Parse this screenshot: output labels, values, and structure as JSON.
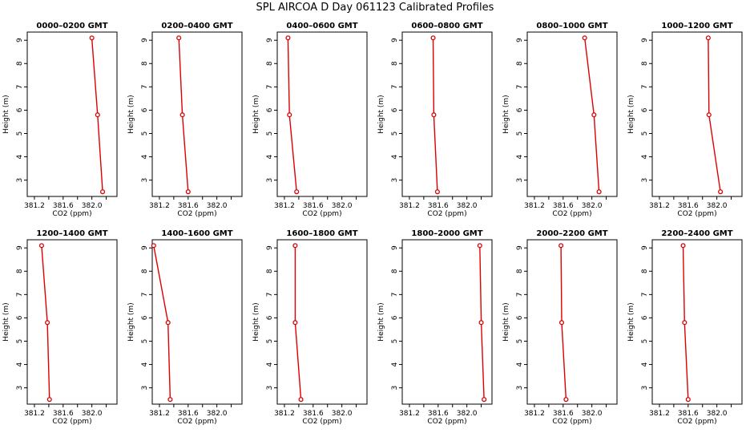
{
  "figure_title": "SPL AIRCOA D  Day 061123  Calibrated Profiles",
  "colors": {
    "series": "#dd0000",
    "axes": "#000000",
    "background": "#ffffff"
  },
  "chart_data": [
    {
      "type": "line",
      "title": "0000–0200 GMT",
      "xlabel": "CO2 (ppm)",
      "ylabel": "Height (m)",
      "xlim": [
        381.1,
        382.35
      ],
      "ylim": [
        2.3,
        9.35
      ],
      "x_ticks": [
        "381.2",
        "381.6",
        "382.0"
      ],
      "y_ticks": [
        "3",
        "4",
        "5",
        "6",
        "7",
        "8",
        "9"
      ],
      "x": [
        382.0,
        382.08,
        382.15
      ],
      "y": [
        9.1,
        5.8,
        2.5
      ]
    },
    {
      "type": "line",
      "title": "0200–0400 GMT",
      "xlabel": "CO2 (ppm)",
      "ylabel": "Height (m)",
      "xlim": [
        381.1,
        382.35
      ],
      "ylim": [
        2.3,
        9.35
      ],
      "x_ticks": [
        "381.2",
        "381.6",
        "382.0"
      ],
      "y_ticks": [
        "3",
        "4",
        "5",
        "6",
        "7",
        "8",
        "9"
      ],
      "x": [
        381.47,
        381.52,
        381.6
      ],
      "y": [
        9.1,
        5.8,
        2.5
      ]
    },
    {
      "type": "line",
      "title": "0400–0600 GMT",
      "xlabel": "CO2 (ppm)",
      "ylabel": "Height (m)",
      "xlim": [
        381.1,
        382.35
      ],
      "ylim": [
        2.3,
        9.35
      ],
      "x_ticks": [
        "381.2",
        "381.6",
        "382.0"
      ],
      "y_ticks": [
        "3",
        "4",
        "5",
        "6",
        "7",
        "8",
        "9"
      ],
      "x": [
        381.25,
        381.27,
        381.37
      ],
      "y": [
        9.1,
        5.8,
        2.5
      ]
    },
    {
      "type": "line",
      "title": "0600–0800 GMT",
      "xlabel": "CO2 (ppm)",
      "ylabel": "Height (m)",
      "xlim": [
        381.1,
        382.35
      ],
      "ylim": [
        2.3,
        9.35
      ],
      "x_ticks": [
        "381.2",
        "381.6",
        "382.0"
      ],
      "y_ticks": [
        "3",
        "4",
        "5",
        "6",
        "7",
        "8",
        "9"
      ],
      "x": [
        381.53,
        381.54,
        381.59
      ],
      "y": [
        9.1,
        5.8,
        2.5
      ]
    },
    {
      "type": "line",
      "title": "0800–1000 GMT",
      "xlabel": "CO2 (ppm)",
      "ylabel": "Height (m)",
      "xlim": [
        381.1,
        382.35
      ],
      "ylim": [
        2.3,
        9.35
      ],
      "x_ticks": [
        "381.2",
        "381.6",
        "382.0"
      ],
      "y_ticks": [
        "3",
        "4",
        "5",
        "6",
        "7",
        "8",
        "9"
      ],
      "x": [
        381.9,
        382.03,
        382.1
      ],
      "y": [
        9.1,
        5.8,
        2.5
      ]
    },
    {
      "type": "line",
      "title": "1000–1200 GMT",
      "xlabel": "CO2 (ppm)",
      "ylabel": "Height (m)",
      "xlim": [
        381.1,
        382.35
      ],
      "ylim": [
        2.3,
        9.35
      ],
      "x_ticks": [
        "381.2",
        "381.6",
        "382.0"
      ],
      "y_ticks": [
        "3",
        "4",
        "5",
        "6",
        "7",
        "8",
        "9"
      ],
      "x": [
        381.88,
        381.89,
        382.05
      ],
      "y": [
        9.1,
        5.8,
        2.5
      ]
    },
    {
      "type": "line",
      "title": "1200–1400 GMT",
      "xlabel": "CO2 (ppm)",
      "ylabel": "Height (m)",
      "xlim": [
        381.1,
        382.35
      ],
      "ylim": [
        2.3,
        9.35
      ],
      "x_ticks": [
        "381.2",
        "381.6",
        "382.0"
      ],
      "y_ticks": [
        "3",
        "4",
        "5",
        "6",
        "7",
        "8",
        "9"
      ],
      "x": [
        381.3,
        381.38,
        381.41
      ],
      "y": [
        9.1,
        5.8,
        2.5
      ]
    },
    {
      "type": "line",
      "title": "1400–1600 GMT",
      "xlabel": "CO2 (ppm)",
      "ylabel": "Height (m)",
      "xlim": [
        381.1,
        382.35
      ],
      "ylim": [
        2.3,
        9.35
      ],
      "x_ticks": [
        "381.2",
        "381.6",
        "382.0"
      ],
      "y_ticks": [
        "3",
        "4",
        "5",
        "6",
        "7",
        "8",
        "9"
      ],
      "x": [
        381.12,
        381.32,
        381.35
      ],
      "y": [
        9.1,
        5.8,
        2.5
      ]
    },
    {
      "type": "line",
      "title": "1600–1800 GMT",
      "xlabel": "CO2 (ppm)",
      "ylabel": "Height (m)",
      "xlim": [
        381.1,
        382.35
      ],
      "ylim": [
        2.3,
        9.35
      ],
      "x_ticks": [
        "381.2",
        "381.6",
        "382.0"
      ],
      "y_ticks": [
        "3",
        "4",
        "5",
        "6",
        "7",
        "8",
        "9"
      ],
      "x": [
        381.35,
        381.35,
        381.43
      ],
      "y": [
        9.1,
        5.8,
        2.5
      ]
    },
    {
      "type": "line",
      "title": "1800–2000 GMT",
      "xlabel": "CO2 (ppm)",
      "ylabel": "Height (m)",
      "xlim": [
        381.1,
        382.35
      ],
      "ylim": [
        2.3,
        9.35
      ],
      "x_ticks": [
        "381.2",
        "381.6",
        "382.0"
      ],
      "y_ticks": [
        "3",
        "4",
        "5",
        "6",
        "7",
        "8",
        "9"
      ],
      "x": [
        382.18,
        382.2,
        382.24
      ],
      "y": [
        9.1,
        5.8,
        2.5
      ]
    },
    {
      "type": "line",
      "title": "2000–2200 GMT",
      "xlabel": "CO2 (ppm)",
      "ylabel": "Height (m)",
      "xlim": [
        381.1,
        382.35
      ],
      "ylim": [
        2.3,
        9.35
      ],
      "x_ticks": [
        "381.2",
        "381.6",
        "382.0"
      ],
      "y_ticks": [
        "3",
        "4",
        "5",
        "6",
        "7",
        "8",
        "9"
      ],
      "x": [
        381.57,
        381.58,
        381.64
      ],
      "y": [
        9.1,
        5.8,
        2.5
      ]
    },
    {
      "type": "line",
      "title": "2200–2400 GMT",
      "xlabel": "CO2 (ppm)",
      "ylabel": "Height (m)",
      "xlim": [
        381.1,
        382.35
      ],
      "ylim": [
        2.3,
        9.35
      ],
      "x_ticks": [
        "381.2",
        "381.6",
        "382.0"
      ],
      "y_ticks": [
        "3",
        "4",
        "5",
        "6",
        "7",
        "8",
        "9"
      ],
      "x": [
        381.53,
        381.55,
        381.6
      ],
      "y": [
        9.1,
        5.8,
        2.5
      ]
    }
  ]
}
